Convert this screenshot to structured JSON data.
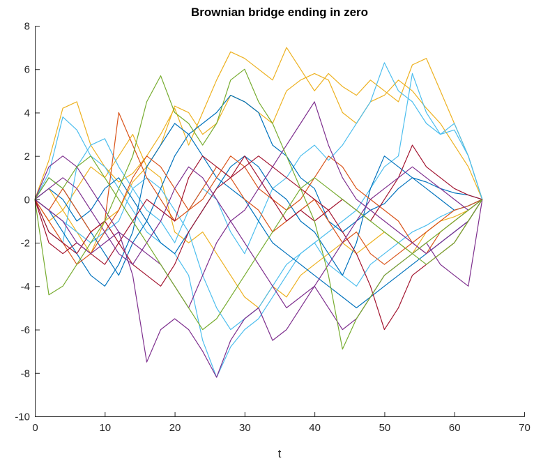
{
  "chart_data": {
    "type": "line",
    "title": "Brownian bridge ending in zero",
    "xlabel": "t",
    "ylabel": "",
    "xlim": [
      0,
      70
    ],
    "ylim": [
      -10,
      8
    ],
    "xticks": [
      0,
      10,
      20,
      30,
      40,
      50,
      60,
      70
    ],
    "yticks": [
      -10,
      -8,
      -6,
      -4,
      -2,
      0,
      2,
      4,
      6,
      8
    ],
    "grid": false,
    "legend": "none",
    "x": [
      0,
      2,
      4,
      6,
      8,
      10,
      12,
      14,
      16,
      18,
      20,
      22,
      24,
      26,
      28,
      30,
      32,
      34,
      36,
      38,
      40,
      42,
      44,
      46,
      48,
      50,
      52,
      54,
      56,
      58,
      60,
      62,
      64
    ],
    "series": [
      {
        "color": "#EDB120",
        "values": [
          0,
          1.8,
          4.2,
          4.5,
          2.5,
          1.5,
          0.8,
          1.2,
          2.0,
          3.0,
          4.2,
          2.5,
          4.0,
          5.5,
          6.8,
          6.5,
          6.0,
          5.5,
          7.0,
          6.0,
          5.0,
          5.8,
          5.2,
          4.8,
          5.5,
          5.0,
          4.5,
          6.2,
          6.5,
          5.0,
          3.5,
          2.0,
          0
        ]
      },
      {
        "color": "#EDB120",
        "values": [
          0,
          -1.0,
          -0.5,
          0.5,
          1.5,
          1.0,
          2.0,
          3.0,
          1.5,
          2.5,
          4.3,
          4.0,
          3.0,
          3.5,
          4.8,
          4.5,
          4.0,
          3.5,
          5.0,
          5.5,
          5.8,
          5.5,
          4.0,
          3.5,
          4.5,
          4.8,
          5.5,
          5.0,
          4.2,
          3.5,
          2.5,
          1.5,
          0
        ]
      },
      {
        "color": "#EDB120",
        "values": [
          0,
          0.5,
          -0.5,
          -1.5,
          -2.5,
          -1.0,
          -0.5,
          0.8,
          1.5,
          1.0,
          -1.5,
          -2.0,
          -1.5,
          -2.5,
          -3.5,
          -4.5,
          -5.0,
          -4.0,
          -4.5,
          -3.5,
          -3.0,
          -2.5,
          -2.0,
          -2.5,
          -2.0,
          -1.5,
          -2.0,
          -2.5,
          -1.5,
          -1.0,
          -0.8,
          -0.5,
          0
        ]
      },
      {
        "color": "#4DBEEE",
        "values": [
          0,
          -1.5,
          -2.0,
          1.5,
          2.5,
          2.8,
          1.5,
          0.5,
          -0.5,
          -1.0,
          -2.0,
          -0.5,
          0.5,
          0.0,
          -1.5,
          -2.5,
          -1.0,
          0.5,
          1.0,
          2.0,
          2.5,
          1.8,
          2.5,
          3.5,
          4.5,
          6.3,
          5.0,
          4.5,
          3.5,
          3.0,
          3.2,
          2.0,
          0
        ]
      },
      {
        "color": "#4DBEEE",
        "values": [
          0,
          1.2,
          3.8,
          3.2,
          2.0,
          1.5,
          0.5,
          -0.5,
          -1.5,
          -2.0,
          -2.5,
          -3.5,
          -6.5,
          -8.2,
          -6.8,
          -6.0,
          -5.5,
          -4.5,
          -3.5,
          -2.5,
          -2.0,
          -3.0,
          -3.5,
          -4.0,
          -3.0,
          -2.5,
          -2.0,
          -1.5,
          -1.2,
          -0.8,
          -0.5,
          -0.3,
          0
        ]
      },
      {
        "color": "#4DBEEE",
        "values": [
          0,
          -0.5,
          -1.0,
          -1.5,
          -2.0,
          -1.5,
          -1.0,
          0.5,
          1.0,
          0.5,
          -0.5,
          -1.5,
          -3.5,
          -5.0,
          -6.0,
          -5.5,
          -5.0,
          -4.0,
          -3.0,
          -2.5,
          -2.0,
          -1.5,
          -1.0,
          -0.5,
          0.5,
          1.5,
          2.0,
          5.8,
          4.0,
          3.0,
          3.5,
          2.0,
          0
        ]
      },
      {
        "color": "#0072BD",
        "values": [
          0,
          1.0,
          0.5,
          -0.5,
          -1.5,
          -2.5,
          -3.5,
          -2.0,
          -1.0,
          0.5,
          2.0,
          3.0,
          3.5,
          4.0,
          4.8,
          4.5,
          4.0,
          2.5,
          2.0,
          1.0,
          0.5,
          -1.0,
          -1.5,
          -1.0,
          -0.5,
          -0.2,
          0.5,
          1.0,
          0.8,
          0.5,
          0.3,
          0.2,
          0
        ]
      },
      {
        "color": "#0072BD",
        "values": [
          0,
          -0.5,
          -1.5,
          -2.5,
          -3.5,
          -4.0,
          -3.0,
          -1.5,
          1.5,
          2.5,
          3.5,
          3.0,
          2.0,
          1.0,
          0.5,
          0.0,
          -1.0,
          -2.0,
          -2.5,
          -3.0,
          -3.5,
          -4.0,
          -4.5,
          -5.0,
          -4.5,
          -4.0,
          -3.5,
          -3.0,
          -2.5,
          -2.0,
          -1.5,
          -1.0,
          0
        ]
      },
      {
        "color": "#0072BD",
        "values": [
          0,
          0.5,
          0.0,
          -1.0,
          -0.5,
          0.5,
          1.0,
          0.0,
          -1.0,
          -2.0,
          -2.5,
          -1.5,
          -0.5,
          0.5,
          1.5,
          2.0,
          1.5,
          0.5,
          0.0,
          -1.0,
          -1.5,
          -2.5,
          -3.5,
          -2.0,
          0.5,
          2.0,
          1.5,
          1.0,
          0.5,
          0.0,
          -0.5,
          -0.3,
          0
        ]
      },
      {
        "color": "#D95319",
        "values": [
          0,
          -1.0,
          -2.0,
          -3.0,
          -2.5,
          -1.5,
          -0.5,
          1.0,
          2.0,
          1.5,
          0.5,
          -0.5,
          0.0,
          1.0,
          2.0,
          1.5,
          0.5,
          0.0,
          -0.5,
          0.0,
          1.0,
          2.0,
          1.5,
          0.5,
          0.0,
          -0.5,
          -1.0,
          -2.0,
          -2.5,
          -1.5,
          -1.0,
          -0.5,
          0
        ]
      },
      {
        "color": "#D95319",
        "values": [
          0,
          -0.5,
          0.5,
          -0.5,
          -1.5,
          -1.0,
          4.0,
          2.5,
          1.0,
          0.0,
          -1.0,
          -0.5,
          0.5,
          1.5,
          1.0,
          0.0,
          -0.5,
          -1.5,
          -1.0,
          -0.5,
          0.0,
          -1.0,
          -2.0,
          -1.5,
          -2.5,
          -3.0,
          -2.5,
          -2.0,
          -1.5,
          -1.0,
          -0.5,
          -0.3,
          0
        ]
      },
      {
        "color": "#A2142F",
        "values": [
          0,
          -2.0,
          -2.5,
          -2.0,
          -2.5,
          -3.0,
          -2.0,
          -1.0,
          0.0,
          -0.5,
          -1.0,
          1.0,
          2.0,
          1.5,
          1.0,
          2.0,
          1.0,
          0.0,
          -1.0,
          -0.5,
          -1.0,
          -0.5,
          0.0,
          -0.5,
          -1.0,
          0.0,
          1.0,
          2.5,
          1.5,
          1.0,
          0.5,
          0.2,
          0
        ]
      },
      {
        "color": "#A2142F",
        "values": [
          0,
          -1.5,
          -2.0,
          -2.5,
          -1.5,
          -1.0,
          -2.0,
          -3.0,
          -3.5,
          -4.0,
          -3.0,
          -1.5,
          -0.5,
          0.5,
          1.0,
          1.5,
          2.0,
          1.5,
          1.0,
          0.5,
          0.0,
          -0.5,
          -1.5,
          -2.5,
          -4.0,
          -6.0,
          -5.0,
          -3.5,
          -3.0,
          -2.5,
          -2.0,
          -1.0,
          0
        ]
      },
      {
        "color": "#7E2F8E",
        "values": [
          0,
          1.5,
          2.0,
          1.5,
          0.5,
          -0.5,
          -1.5,
          -3.5,
          -7.5,
          -6.0,
          -5.5,
          -6.0,
          -7.0,
          -8.2,
          -6.5,
          -5.5,
          -5.0,
          -6.5,
          -6.0,
          -5.0,
          -4.0,
          -5.0,
          -6.0,
          -5.5,
          -4.5,
          -3.5,
          -3.0,
          -2.5,
          -2.0,
          -3.0,
          -3.5,
          -4.0,
          0
        ]
      },
      {
        "color": "#7E2F8E",
        "values": [
          0,
          0.5,
          1.0,
          0.5,
          -0.5,
          -1.5,
          -2.5,
          -3.0,
          -2.0,
          -1.0,
          0.5,
          1.5,
          1.0,
          0.0,
          -1.0,
          -2.0,
          -3.0,
          -4.0,
          -5.0,
          -4.5,
          -4.0,
          -3.0,
          -2.0,
          -1.0,
          0.0,
          0.5,
          1.0,
          1.5,
          1.0,
          0.5,
          0.0,
          -0.5,
          0
        ]
      },
      {
        "color": "#7E2F8E",
        "values": [
          0,
          -0.5,
          -1.0,
          -2.0,
          -2.5,
          -2.0,
          -1.5,
          -2.0,
          -2.5,
          -3.0,
          -4.0,
          -5.0,
          -3.5,
          -2.0,
          -1.0,
          -0.5,
          0.5,
          1.5,
          2.5,
          3.5,
          4.5,
          2.5,
          1.0,
          0.0,
          -0.5,
          -1.0,
          -1.5,
          -2.0,
          -2.5,
          -2.0,
          -1.5,
          -1.0,
          0
        ]
      },
      {
        "color": "#77AC30",
        "values": [
          0,
          -4.4,
          -4.0,
          -3.0,
          -2.0,
          -1.0,
          0.5,
          2.0,
          4.5,
          5.7,
          4.0,
          3.5,
          2.5,
          3.5,
          5.5,
          6.0,
          4.5,
          3.5,
          2.0,
          0.5,
          -1.0,
          -3.5,
          -6.9,
          -5.5,
          -4.5,
          -3.5,
          -3.0,
          -2.5,
          -2.0,
          -1.5,
          -1.0,
          -0.5,
          0
        ]
      },
      {
        "color": "#77AC30",
        "values": [
          0,
          1.0,
          0.5,
          1.5,
          2.0,
          1.0,
          0.0,
          -1.0,
          -2.0,
          -3.0,
          -4.0,
          -5.0,
          -6.0,
          -5.5,
          -4.5,
          -3.5,
          -2.5,
          -1.5,
          -0.5,
          0.5,
          1.0,
          0.5,
          0.0,
          -0.5,
          -1.0,
          -1.5,
          -2.0,
          -2.5,
          -3.0,
          -2.5,
          -2.0,
          -1.0,
          0
        ]
      }
    ]
  }
}
